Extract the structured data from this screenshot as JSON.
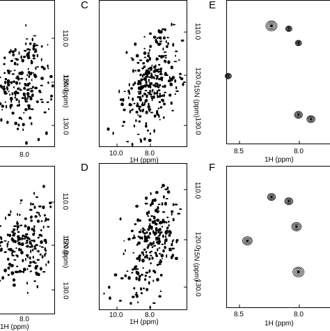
{
  "panels": [
    {
      "id": "A",
      "letter": "",
      "y_ticks": [
        "110.0",
        "120.0",
        "130.0"
      ],
      "x_ticks": [
        "8.0"
      ],
      "xlabel": "",
      "ylabel": "15N (ppm)"
    },
    {
      "id": "B",
      "letter": "",
      "y_ticks": [
        "110.0",
        "120.0",
        "130.0"
      ],
      "x_ticks": [
        "8.0"
      ],
      "xlabel": "1H (ppm)",
      "ylabel": "15N (ppm)"
    },
    {
      "id": "C",
      "letter": "C",
      "y_ticks": [
        "110.0",
        "120.0",
        "130.0"
      ],
      "x_ticks": [
        "10.0",
        "8.0"
      ],
      "xlabel": "1H (ppm)",
      "ylabel": "15N (ppm)"
    },
    {
      "id": "D",
      "letter": "D",
      "y_ticks": [
        "110.0",
        "120.0",
        "130.0"
      ],
      "x_ticks": [
        "10.0",
        "8.0"
      ],
      "xlabel": "1H (ppm)",
      "ylabel": "15N (ppm)"
    },
    {
      "id": "E",
      "letter": "E",
      "x_ticks": [
        "8.5",
        "8.0"
      ],
      "xlabel": "1H (ppm)"
    },
    {
      "id": "F",
      "letter": "F",
      "x_ticks": [
        "8.5",
        "8.0"
      ],
      "xlabel": "1H (ppm)"
    }
  ],
  "chart_data": [
    {
      "type": "scatter",
      "title": "",
      "xlabel": "",
      "ylabel": "15N (ppm)",
      "xlim": [
        10.9,
        7.2
      ],
      "ylim": [
        135.0,
        104.0
      ],
      "description_key": "panel-A"
    },
    {
      "type": "scatter",
      "title": "",
      "xlabel": "1H (ppm)",
      "ylabel": "15N (ppm)",
      "xlim": [
        10.9,
        7.2
      ],
      "ylim": [
        135.0,
        104.0
      ],
      "description_key": "panel-B"
    },
    {
      "type": "scatter",
      "title": "",
      "xlabel": "1H (ppm)",
      "ylabel": "15N (ppm)",
      "xlim": [
        11.0,
        6.7
      ],
      "ylim": [
        134.0,
        104.0
      ],
      "description_key": "panel-C"
    },
    {
      "type": "scatter",
      "title": "",
      "xlabel": "1H (ppm)",
      "ylabel": "15N (ppm)",
      "xlim": [
        11.0,
        6.7
      ],
      "ylim": [
        134.0,
        104.0
      ],
      "description_key": "panel-D"
    },
    {
      "type": "scatter",
      "title": "",
      "xlabel": "1H (ppm)",
      "xlim": [
        8.7,
        7.6
      ],
      "points": [
        [
          8.23,
          0.18
        ],
        [
          8.05,
          0.2
        ],
        [
          7.95,
          0.3
        ],
        [
          8.68,
          0.53
        ],
        [
          7.95,
          0.8
        ],
        [
          7.82,
          0.83
        ]
      ]
    },
    {
      "type": "scatter",
      "title": "",
      "xlabel": "1H (ppm)",
      "xlim": [
        8.7,
        7.6
      ],
      "points": [
        [
          8.23,
          0.22
        ],
        [
          8.05,
          0.25
        ],
        [
          7.97,
          0.43
        ],
        [
          8.48,
          0.53
        ],
        [
          7.95,
          0.75
        ]
      ]
    }
  ]
}
